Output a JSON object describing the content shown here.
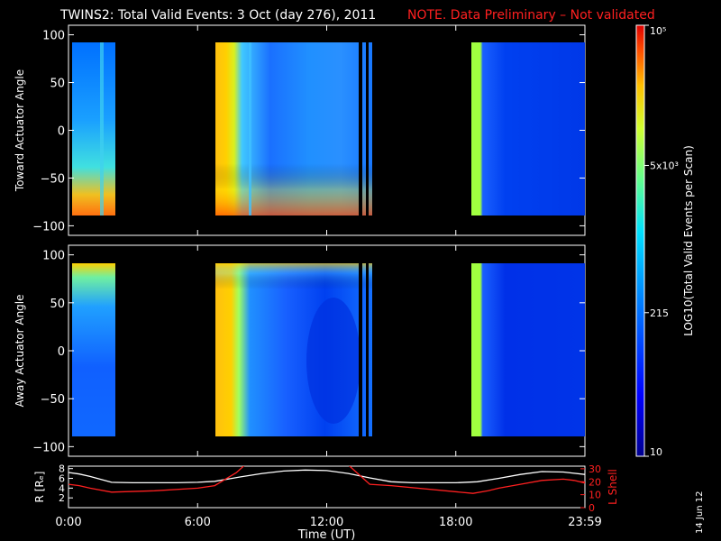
{
  "header": {
    "title": "TWINS2: Total Valid Events:  3 Oct (day 276), 2011",
    "note": "NOTE. Data Preliminary – Not validated"
  },
  "footer": {
    "date_stamp": "14 Jun 12"
  },
  "colors": {
    "note": "#ff2020",
    "r_line": "#ffffff",
    "lshell_line": "#ff2020",
    "no_data": "#000000"
  },
  "chart_data": [
    {
      "type": "heatmap",
      "panel": "toward",
      "ylabel": "Toward Actuator Angle",
      "ylim": [
        -110,
        110
      ],
      "yticks": [
        "100",
        "50",
        "0",
        "−50",
        "−100"
      ],
      "ytick_values": [
        100,
        50,
        0,
        -50,
        -100
      ],
      "xlim_hours": [
        0,
        24
      ],
      "data_intervals_hours": [
        [
          0.3,
          2.0
        ],
        [
          6.8,
          14.2
        ],
        [
          18.8,
          24.0
        ]
      ]
    },
    {
      "type": "heatmap",
      "panel": "away",
      "ylabel": "Away Actuator Angle",
      "ylim": [
        -110,
        110
      ],
      "yticks": [
        "100",
        "50",
        "0",
        "−50",
        "−100"
      ],
      "ytick_values": [
        100,
        50,
        0,
        -50,
        -100
      ],
      "xlim_hours": [
        0,
        24
      ],
      "data_intervals_hours": [
        [
          0.3,
          2.0
        ],
        [
          6.8,
          14.2
        ],
        [
          18.8,
          24.0
        ]
      ]
    },
    {
      "type": "line",
      "panel": "orbit",
      "ylabel_left": "R [Rₑ]",
      "ylabel_right": "L Shell",
      "left_yticks": [
        "8",
        "6",
        "4",
        "2"
      ],
      "left_ytick_values": [
        8,
        6,
        4,
        2
      ],
      "left_ylim": [
        0,
        8.5
      ],
      "right_yticks": [
        "30",
        "20",
        "10",
        "0"
      ],
      "right_ytick_values": [
        30,
        20,
        10,
        0
      ],
      "right_ylim": [
        0,
        32
      ],
      "xlabel": "Time (UT)",
      "xticks": [
        "0:00",
        "6:00",
        "12:00",
        "18:00",
        "23:59"
      ],
      "xtick_values": [
        0,
        6,
        12,
        18,
        24
      ],
      "series": [
        {
          "name": "R [Rₑ]",
          "axis": "left",
          "x": [
            0,
            0.5,
            1,
            1.5,
            2,
            3,
            4,
            5,
            6,
            6.8,
            8,
            9,
            10,
            11,
            12,
            13,
            14,
            15,
            16,
            17,
            18,
            19,
            20,
            21,
            22,
            23,
            24
          ],
          "y": [
            7.2,
            6.9,
            6.4,
            5.8,
            5.2,
            5.1,
            5.1,
            5.1,
            5.2,
            5.4,
            6.3,
            7.0,
            7.5,
            7.7,
            7.6,
            7.0,
            6.1,
            5.3,
            5.1,
            5.1,
            5.1,
            5.3,
            6.0,
            6.8,
            7.4,
            7.3,
            6.8
          ]
        },
        {
          "name": "L Shell",
          "axis": "right",
          "x": [
            0,
            0.5,
            1,
            2,
            4,
            6,
            6.8,
            7.8,
            8.2,
            13,
            14,
            15,
            18.8,
            19.5,
            20,
            21,
            22,
            23,
            23.5,
            24
          ],
          "y": [
            18,
            17,
            15,
            12,
            13,
            15,
            17,
            27,
            33,
            33,
            18,
            17,
            11,
            13,
            15,
            18,
            21,
            22,
            21,
            19
          ]
        }
      ]
    }
  ],
  "colorbar": {
    "label": "LOG10(Total Valid Events per Scan)",
    "tick_labels": [
      "10",
      "215",
      "5x10³",
      "10⁵"
    ],
    "tick_values": [
      10,
      215,
      5000,
      100000
    ],
    "range": [
      10,
      100000
    ]
  }
}
